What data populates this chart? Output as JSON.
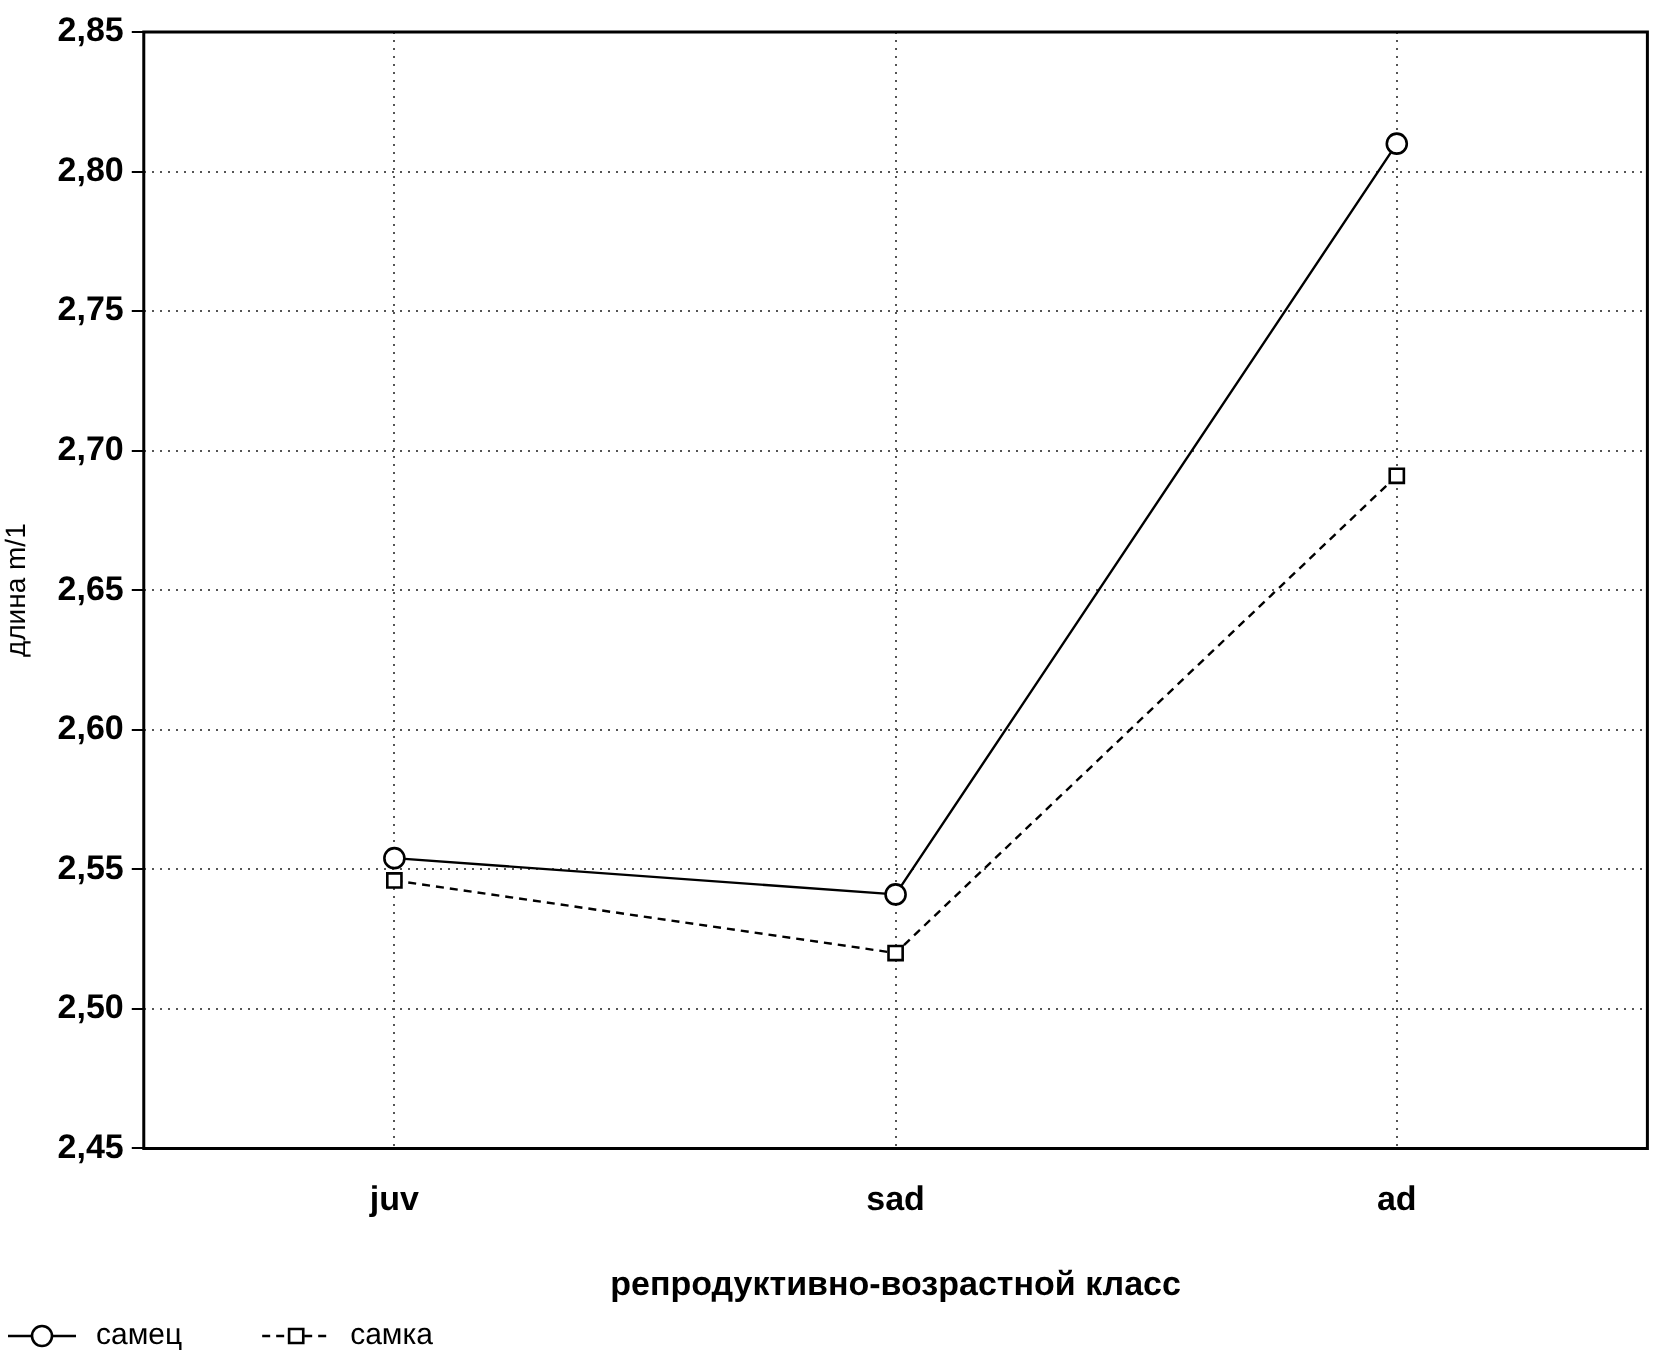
{
  "chart_data": {
    "type": "line",
    "xlabel": "репродуктивно-возрастной класс",
    "ylabel": "длина m/1",
    "categories": [
      "juv",
      "sad",
      "ad"
    ],
    "series": [
      {
        "name": "самец",
        "color": "#000000",
        "values": [
          2.554,
          2.541,
          2.81
        ],
        "marker": "circle",
        "line_style": "solid"
      },
      {
        "name": "самка",
        "color": "#000000",
        "values": [
          2.546,
          2.52,
          2.691
        ],
        "marker": "square",
        "line_style": "dashed"
      }
    ],
    "ylim": [
      2.45,
      2.85
    ],
    "yticks": [
      {
        "value": 2.45,
        "label": "2,45"
      },
      {
        "value": 2.5,
        "label": "2,50"
      },
      {
        "value": 2.55,
        "label": "2,55"
      },
      {
        "value": 2.6,
        "label": "2,60"
      },
      {
        "value": 2.65,
        "label": "2,65"
      },
      {
        "value": 2.7,
        "label": "2,70"
      },
      {
        "value": 2.75,
        "label": "2,75"
      },
      {
        "value": 2.8,
        "label": "2,80"
      },
      {
        "value": 2.85,
        "label": "2,85"
      }
    ],
    "grid": true,
    "legend": "bottom left"
  }
}
